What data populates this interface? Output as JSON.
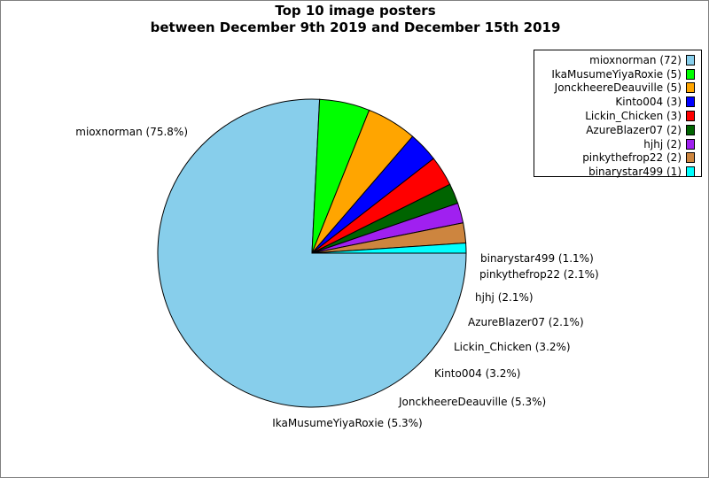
{
  "chart_data": {
    "type": "pie",
    "title": "Top 10 image posters",
    "subtitle": "between December 9th 2019 and December 15th 2019",
    "legend_position": "top-right",
    "slices": [
      {
        "name": "mioxnorman",
        "value": 72,
        "percent_label": "mioxnorman (75.8%)",
        "legend_label": "mioxnorman (72)",
        "color": "#87ceeb"
      },
      {
        "name": "IkaMusumeYiyaRoxie",
        "value": 5,
        "percent_label": "IkaMusumeYiyaRoxie (5.3%)",
        "legend_label": "IkaMusumeYiyaRoxie (5)",
        "color": "#00ff00"
      },
      {
        "name": "JonckheereDeauville",
        "value": 5,
        "percent_label": "JonckheereDeauville (5.3%)",
        "legend_label": "JonckheereDeauville (5)",
        "color": "#ffa500"
      },
      {
        "name": "Kinto004",
        "value": 3,
        "percent_label": "Kinto004 (3.2%)",
        "legend_label": "Kinto004 (3)",
        "color": "#0000ff"
      },
      {
        "name": "Lickin_Chicken",
        "value": 3,
        "percent_label": "Lickin_Chicken (3.2%)",
        "legend_label": "Lickin_Chicken (3)",
        "color": "#ff0000"
      },
      {
        "name": "AzureBlazer07",
        "value": 2,
        "percent_label": "AzureBlazer07 (2.1%)",
        "legend_label": "AzureBlazer07 (2)",
        "color": "#006400"
      },
      {
        "name": "hjhj",
        "value": 2,
        "percent_label": "hjhj (2.1%)",
        "legend_label": "hjhj (2)",
        "color": "#a020f0"
      },
      {
        "name": "pinkythefrop22",
        "value": 2,
        "percent_label": "pinkythefrop22 (2.1%)",
        "legend_label": "pinkythefrop22 (2)",
        "color": "#cd853f"
      },
      {
        "name": "binarystar499",
        "value": 1,
        "percent_label": "binarystar499 (1.1%)",
        "legend_label": "binarystar499 (1)",
        "color": "#00ffff"
      }
    ]
  }
}
